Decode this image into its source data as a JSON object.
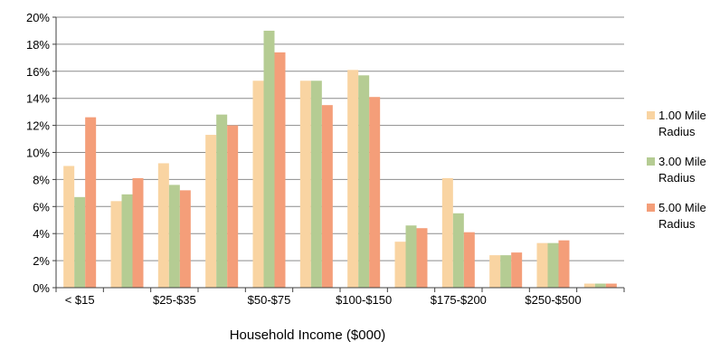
{
  "chart_data": {
    "type": "bar",
    "title": "",
    "xlabel": "Household Income ($000)",
    "ylabel": "",
    "ylim": [
      0,
      20
    ],
    "y_ticks": [
      "0%",
      "2%",
      "4%",
      "6%",
      "8%",
      "10%",
      "12%",
      "14%",
      "16%",
      "18%",
      "20%"
    ],
    "y_tick_values": [
      0,
      2,
      4,
      6,
      8,
      10,
      12,
      14,
      16,
      18,
      20
    ],
    "grid": "horizontal",
    "legend_position": "right",
    "x_tick_labels": [
      "< $15",
      "",
      "$25-$35",
      "",
      "$50-$75",
      "",
      "$100-$150",
      "",
      "$175-$200",
      "",
      "$250-$500",
      ""
    ],
    "series": [
      {
        "name": "1.00 Mile Radius",
        "name_lines": [
          "1.00 Mile",
          "Radius"
        ],
        "color": "#f9d4a2",
        "values": [
          9.0,
          6.4,
          9.2,
          11.3,
          15.3,
          15.3,
          16.1,
          3.4,
          8.1,
          2.4,
          3.3,
          0.3
        ]
      },
      {
        "name": "3.00 Mile Radius",
        "name_lines": [
          "3.00 Mile",
          "Radius"
        ],
        "color": "#b5cc93",
        "values": [
          6.7,
          6.9,
          7.6,
          12.8,
          19.0,
          15.3,
          15.7,
          4.6,
          5.5,
          2.4,
          3.3,
          0.3
        ]
      },
      {
        "name": "5.00 Mile Radius",
        "name_lines": [
          "5.00 Mile",
          "Radius"
        ],
        "color": "#f49e79",
        "values": [
          12.6,
          8.1,
          7.2,
          12.0,
          17.4,
          13.5,
          14.1,
          4.4,
          4.1,
          2.6,
          3.5,
          0.3
        ]
      }
    ]
  }
}
